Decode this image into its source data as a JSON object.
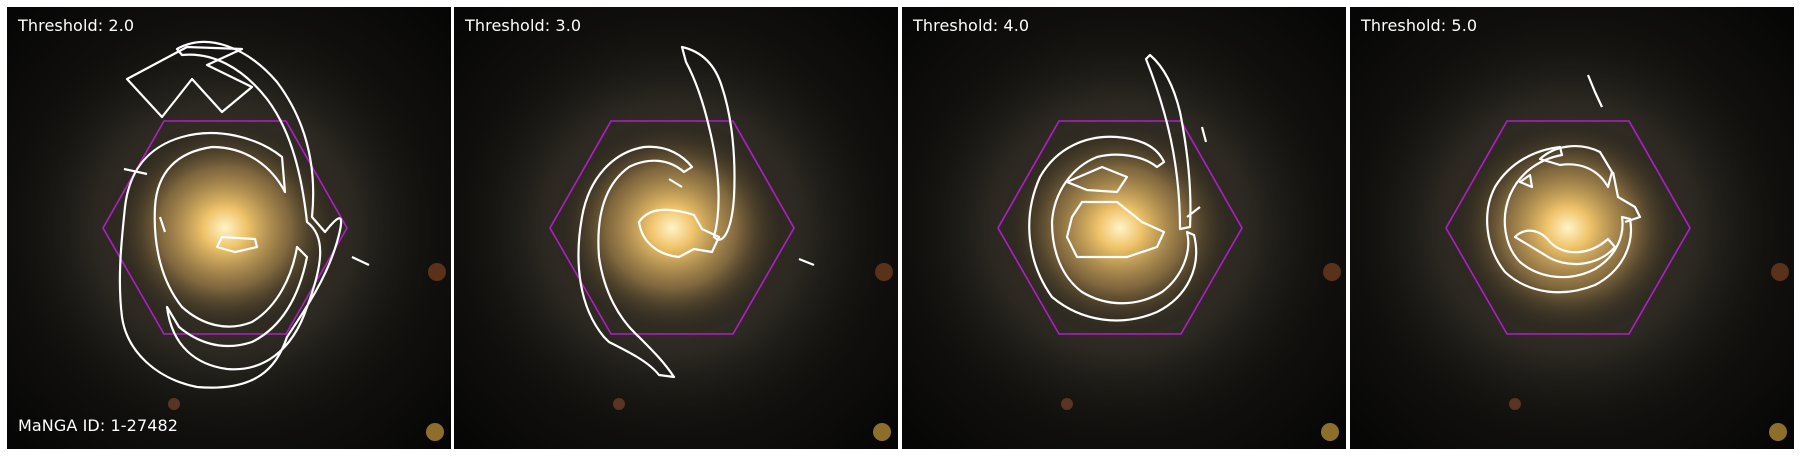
{
  "panels": [
    {
      "threshold_label": "Threshold: 2.0"
    },
    {
      "threshold_label": "Threshold: 3.0"
    },
    {
      "threshold_label": "Threshold: 4.0"
    },
    {
      "threshold_label": "Threshold: 5.0"
    }
  ],
  "manga_label": "MaNGA ID: 1-27482",
  "colors": {
    "hexagon": "#b01ec8",
    "contour": "#ffffff",
    "core": "#f7d98a"
  }
}
